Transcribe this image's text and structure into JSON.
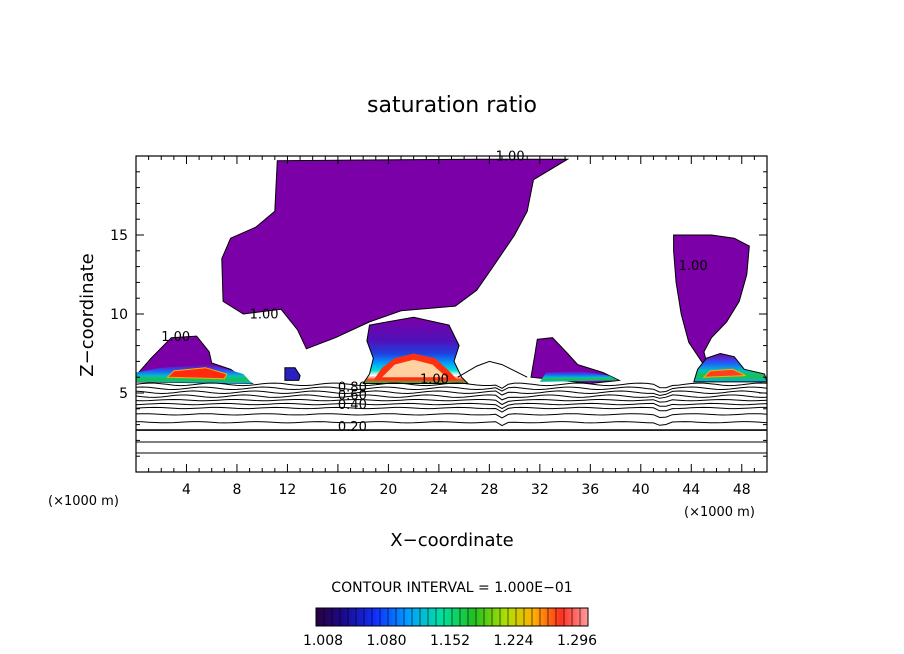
{
  "chart_data": {
    "type": "heatmap",
    "title": "saturation ratio",
    "xlabel": "X−coordinate",
    "ylabel": "Z−coordinate",
    "x_unit_left": "(×1000 m)",
    "x_unit_right": "(×1000 m)",
    "xlim": [
      0,
      50
    ],
    "ylim": [
      0,
      20
    ],
    "x_ticks": [
      4,
      8,
      12,
      16,
      20,
      24,
      28,
      32,
      36,
      40,
      44,
      48
    ],
    "y_ticks": [
      5,
      10,
      15
    ],
    "contour_interval_text": "CONTOUR INTERVAL =  1.000E−01",
    "colorbar_labels": [
      "1.008",
      "1.080",
      "1.152",
      "1.224",
      "1.296"
    ],
    "contour_labels": [
      {
        "text": "1.00",
        "x": 28.5,
        "y": 19.7
      },
      {
        "text": "1.00",
        "x": 43.0,
        "y": 12.8
      },
      {
        "text": "1.00",
        "x": 9.0,
        "y": 9.7
      },
      {
        "text": "1.00",
        "x": 2.0,
        "y": 8.3
      },
      {
        "text": "1.00",
        "x": 22.5,
        "y": 5.6
      },
      {
        "text": "0.80",
        "x": 16.0,
        "y": 5.1
      },
      {
        "text": "0.60",
        "x": 16.0,
        "y": 4.6
      },
      {
        "text": "0.40",
        "x": 16.0,
        "y": 4.0
      },
      {
        "text": "0.20",
        "x": 16.0,
        "y": 2.6
      }
    ],
    "colors": {
      "supersaturated_fill": "#7b00a8",
      "frame": "#000000"
    }
  }
}
